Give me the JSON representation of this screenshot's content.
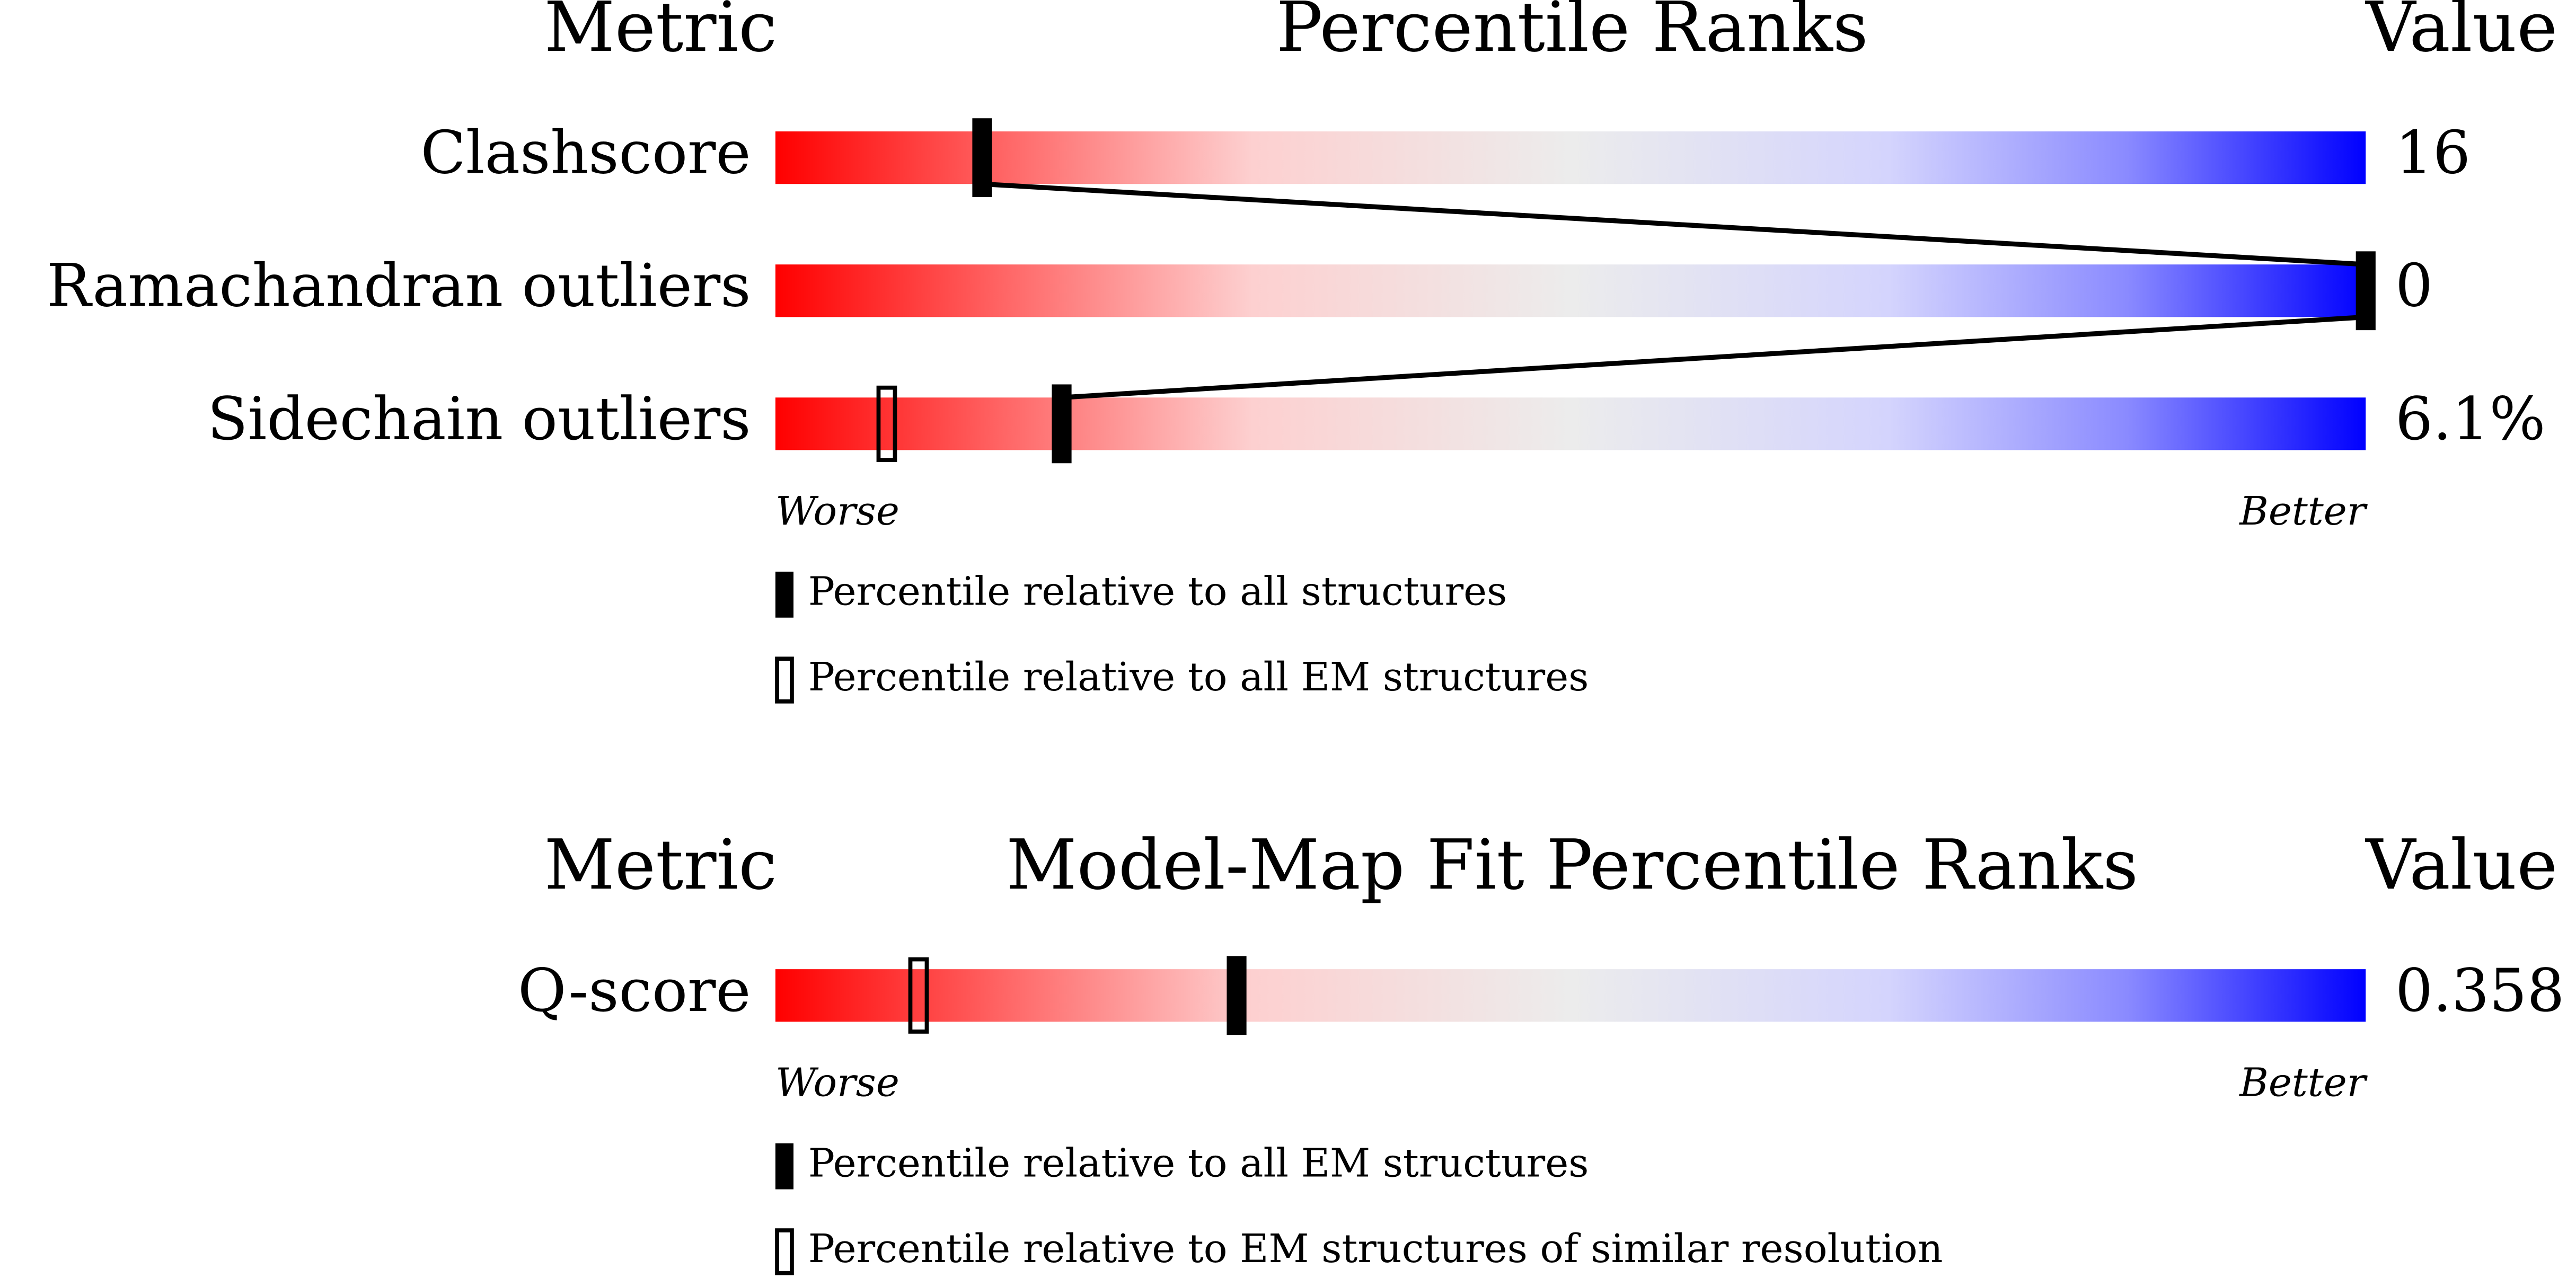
{
  "chart_data": [
    {
      "type": "percentile",
      "metric_header": "Metric",
      "title": "Percentile Ranks",
      "value_header": "Value",
      "categories": [
        "Clashscore",
        "Ramachandran outliers",
        "Sidechain outliers"
      ],
      "metric_values": [
        "16",
        "0",
        "6.1%"
      ],
      "series": [
        {
          "name": "Percentile relative to all structures",
          "style": "filled",
          "color": "#000000",
          "values": [
            13,
            100,
            18
          ]
        },
        {
          "name": "Percentile relative to all EM structures",
          "style": "open",
          "color": "#000000",
          "values": [
            null,
            null,
            7
          ]
        }
      ],
      "xlim": [
        0,
        100
      ],
      "worse_label": "Worse",
      "better_label": "Better"
    },
    {
      "type": "percentile",
      "metric_header": "Metric",
      "title": "Model-Map Fit Percentile Ranks",
      "value_header": "Value",
      "categories": [
        "Q-score"
      ],
      "metric_values": [
        "0.358"
      ],
      "series": [
        {
          "name": "Percentile relative to all EM structures",
          "style": "filled",
          "color": "#000000",
          "values": [
            29
          ]
        },
        {
          "name": "Percentile relative to EM structures of similar resolution",
          "style": "open",
          "color": "#000000",
          "values": [
            9
          ]
        }
      ],
      "xlim": [
        0,
        100
      ],
      "worse_label": "Worse",
      "better_label": "Better"
    }
  ]
}
